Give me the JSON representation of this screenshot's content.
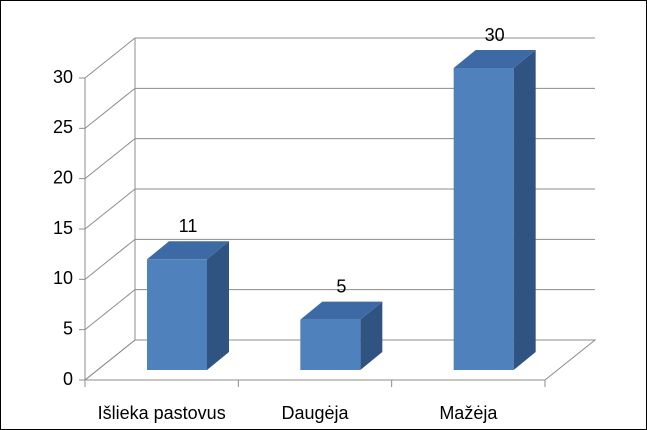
{
  "chart_data": {
    "type": "bar3d",
    "categories": [
      "Išlieka pastovus",
      "Daugėja",
      "Mažėja"
    ],
    "values": [
      11,
      5,
      30
    ],
    "color": "#4f81bd",
    "ylim": [
      0,
      30
    ],
    "yticks": [
      0,
      5,
      10,
      15,
      20,
      25,
      30
    ],
    "grid": true
  }
}
